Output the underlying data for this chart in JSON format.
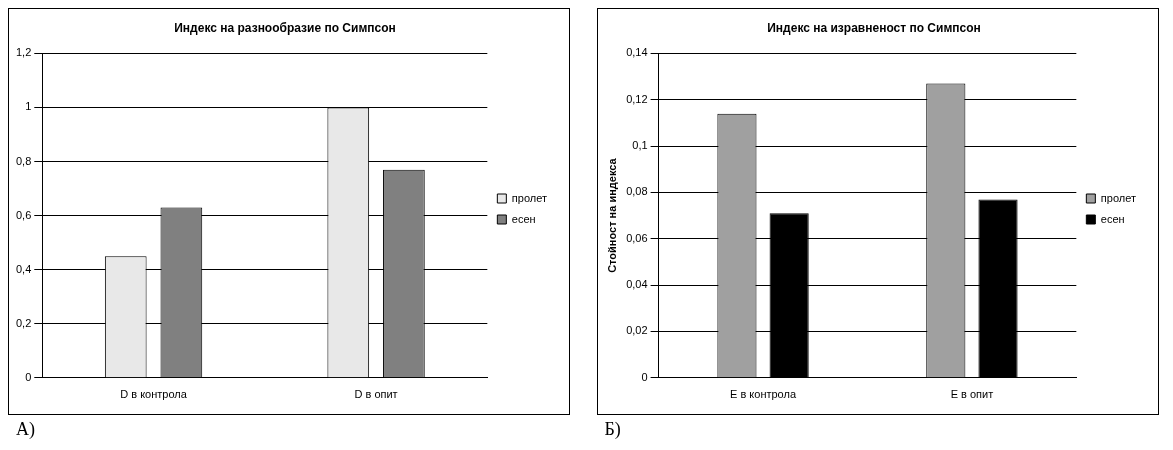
{
  "chart_data": [
    {
      "type": "bar",
      "title": "Индекс на разнообразие по Симпсон",
      "categories": [
        "D в контрола",
        "D в опит"
      ],
      "series": [
        {
          "name": "пролет",
          "color": "#e8e8e8",
          "values": [
            0.45,
            1.0
          ]
        },
        {
          "name": "есен",
          "color": "#808080",
          "values": [
            0.63,
            0.77
          ]
        }
      ],
      "ylim": [
        0,
        1.2
      ],
      "yticks": [
        {
          "value": 0,
          "label": "0"
        },
        {
          "value": 0.2,
          "label": "0,2"
        },
        {
          "value": 0.4,
          "label": "0,4"
        },
        {
          "value": 0.6,
          "label": "0,6"
        },
        {
          "value": 0.8,
          "label": "0,8"
        },
        {
          "value": 1,
          "label": "1"
        },
        {
          "value": 1.2,
          "label": "1,2"
        }
      ],
      "grid": "y",
      "legend": "right",
      "annotations": [
        "А)"
      ]
    },
    {
      "type": "bar",
      "title": "Индекс на изравненост по Симпсон",
      "ylabel": "Стойност на индекса",
      "categories": [
        "Е в контрола",
        "Е в опит"
      ],
      "series": [
        {
          "name": "пролет",
          "color": "#a0a0a0",
          "values": [
            0.114,
            0.127
          ]
        },
        {
          "name": "есен",
          "color": "#000000",
          "values": [
            0.071,
            0.077
          ]
        }
      ],
      "ylim": [
        0,
        0.14
      ],
      "yticks": [
        {
          "value": 0,
          "label": "0"
        },
        {
          "value": 0.02,
          "label": "0,02"
        },
        {
          "value": 0.04,
          "label": "0,04"
        },
        {
          "value": 0.06,
          "label": "0,06"
        },
        {
          "value": 0.08,
          "label": "0,08"
        },
        {
          "value": 0.1,
          "label": "0,1"
        },
        {
          "value": 0.12,
          "label": "0,12"
        },
        {
          "value": 0.14,
          "label": "0,14"
        }
      ],
      "grid": "y",
      "legend": "right",
      "annotations": [
        "Б)"
      ]
    }
  ]
}
